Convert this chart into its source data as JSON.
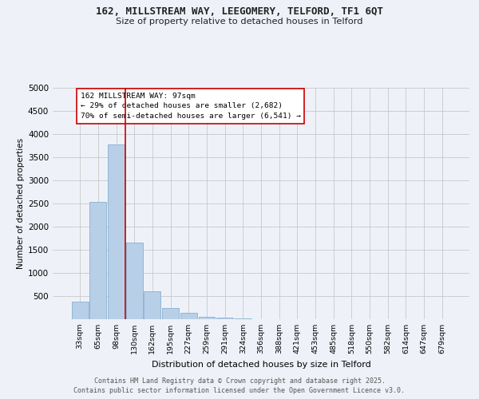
{
  "title1": "162, MILLSTREAM WAY, LEEGOMERY, TELFORD, TF1 6QT",
  "title2": "Size of property relative to detached houses in Telford",
  "xlabel": "Distribution of detached houses by size in Telford",
  "ylabel": "Number of detached properties",
  "categories": [
    "33sqm",
    "65sqm",
    "98sqm",
    "130sqm",
    "162sqm",
    "195sqm",
    "227sqm",
    "259sqm",
    "291sqm",
    "324sqm",
    "356sqm",
    "388sqm",
    "421sqm",
    "453sqm",
    "485sqm",
    "518sqm",
    "550sqm",
    "582sqm",
    "614sqm",
    "647sqm",
    "679sqm"
  ],
  "values": [
    380,
    2540,
    3780,
    1650,
    600,
    250,
    130,
    60,
    40,
    10,
    5,
    0,
    0,
    0,
    0,
    0,
    0,
    0,
    0,
    0,
    0
  ],
  "bar_color": "#b8cfe8",
  "bar_edgecolor": "#8ab0d0",
  "vline_color": "#cc0000",
  "annotation_text": "162 MILLSTREAM WAY: 97sqm\n← 29% of detached houses are smaller (2,682)\n70% of semi-detached houses are larger (6,541) →",
  "annotation_box_edgecolor": "#cc0000",
  "ylim": [
    0,
    5000
  ],
  "yticks": [
    0,
    500,
    1000,
    1500,
    2000,
    2500,
    3000,
    3500,
    4000,
    4500,
    5000
  ],
  "footer1": "Contains HM Land Registry data © Crown copyright and database right 2025.",
  "footer2": "Contains public sector information licensed under the Open Government Licence v3.0.",
  "bg_color": "#eef2f8",
  "plot_bg_color": "#eef2f8",
  "grid_color": "#c8c8c8"
}
